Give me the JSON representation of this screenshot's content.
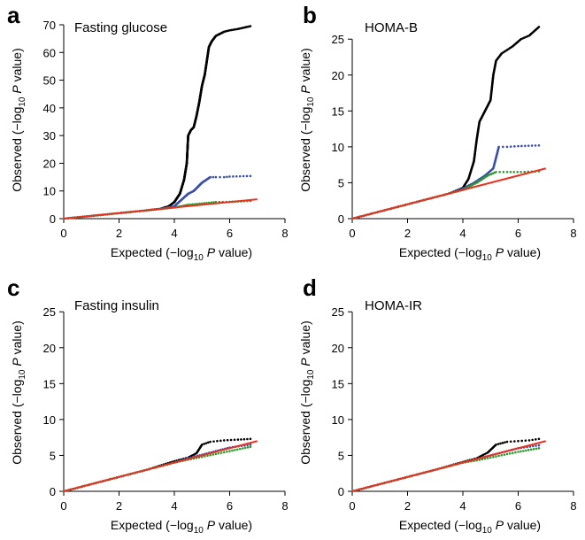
{
  "colors": {
    "all_snps": "#000000",
    "excluding_known_1": "#3b4fa8",
    "excluding_known_2": "#2e9a2e",
    "null_line": "#e8321f"
  },
  "chart_data": [
    {
      "panel": "a",
      "title": "Fasting glucose",
      "type": "scatter",
      "xlabel": {
        "pre": "Expected (−log",
        "sub": "10",
        "italic": " P",
        "post": " value)"
      },
      "ylabel": {
        "pre": "Observed (−log",
        "sub": "10",
        "italic": " P",
        "post": " value)"
      },
      "xlim": [
        0,
        8
      ],
      "ylim": [
        0,
        70
      ],
      "xticks": [
        0,
        2,
        4,
        6,
        8
      ],
      "yticks": [
        0,
        10,
        20,
        30,
        40,
        50,
        60,
        70
      ],
      "null_line": [
        [
          0,
          0
        ],
        [
          7,
          7
        ]
      ],
      "series": [
        {
          "color_key": "all_snps",
          "points": [
            [
              0,
              0
            ],
            [
              1,
              1
            ],
            [
              2,
              2
            ],
            [
              3,
              3
            ],
            [
              3.5,
              3.6
            ],
            [
              3.8,
              4.5
            ],
            [
              4.0,
              6
            ],
            [
              4.2,
              9
            ],
            [
              4.35,
              14
            ],
            [
              4.45,
              20
            ],
            [
              4.5,
              30
            ],
            [
              4.6,
              32
            ],
            [
              4.7,
              33
            ],
            [
              4.8,
              37
            ],
            [
              4.9,
              42
            ],
            [
              5.0,
              48
            ],
            [
              5.1,
              52
            ],
            [
              5.25,
              62
            ],
            [
              5.35,
              64
            ],
            [
              5.5,
              66
            ],
            [
              5.8,
              67.5
            ],
            [
              6.0,
              68
            ],
            [
              6.3,
              68.5
            ],
            [
              6.75,
              69.5
            ]
          ]
        },
        {
          "color_key": "excluding_known_1",
          "points": [
            [
              0,
              0
            ],
            [
              1,
              1
            ],
            [
              2,
              2
            ],
            [
              3,
              3
            ],
            [
              3.5,
              3.5
            ],
            [
              4,
              4.5
            ],
            [
              4.5,
              9
            ],
            [
              4.7,
              10
            ],
            [
              5.0,
              13
            ],
            [
              5.3,
              15
            ],
            [
              5.5,
              15
            ],
            [
              5.8,
              15
            ],
            [
              6,
              15.2
            ],
            [
              6.75,
              15.4
            ]
          ]
        },
        {
          "color_key": "excluding_known_2",
          "points": [
            [
              0,
              0
            ],
            [
              1,
              1
            ],
            [
              2,
              2
            ],
            [
              3,
              3
            ],
            [
              3.5,
              3.5
            ],
            [
              4,
              4
            ],
            [
              4.5,
              5
            ],
            [
              5,
              5.5
            ],
            [
              5.5,
              6
            ],
            [
              6,
              6.1
            ],
            [
              6.3,
              6.2
            ],
            [
              6.75,
              6.4
            ]
          ]
        }
      ]
    },
    {
      "panel": "b",
      "title": "HOMA-B",
      "type": "scatter",
      "xlabel": {
        "pre": "Expected (−log",
        "sub": "10",
        "italic": " P",
        "post": " value)"
      },
      "ylabel": {
        "pre": "Observed (−log",
        "sub": "10",
        "italic": " P",
        "post": " value)"
      },
      "xlim": [
        0,
        8
      ],
      "ylim": [
        0,
        27
      ],
      "xticks": [
        0,
        2,
        4,
        6,
        8
      ],
      "yticks": [
        0,
        5,
        10,
        15,
        20,
        25
      ],
      "null_line": [
        [
          0,
          0
        ],
        [
          7,
          7
        ]
      ],
      "series": [
        {
          "color_key": "all_snps",
          "points": [
            [
              0,
              0
            ],
            [
              1,
              1
            ],
            [
              2,
              2
            ],
            [
              3,
              3
            ],
            [
              3.5,
              3.5
            ],
            [
              4,
              4.3
            ],
            [
              4.2,
              5.5
            ],
            [
              4.4,
              8
            ],
            [
              4.5,
              11
            ],
            [
              4.6,
              13.5
            ],
            [
              4.8,
              15
            ],
            [
              5.0,
              16.5
            ],
            [
              5.1,
              20
            ],
            [
              5.2,
              22
            ],
            [
              5.4,
              23
            ],
            [
              5.6,
              23.5
            ],
            [
              5.8,
              24
            ],
            [
              6.1,
              25
            ],
            [
              6.4,
              25.5
            ],
            [
              6.75,
              26.7
            ]
          ]
        },
        {
          "color_key": "excluding_known_1",
          "points": [
            [
              0,
              0
            ],
            [
              1,
              1
            ],
            [
              2,
              2
            ],
            [
              3,
              3
            ],
            [
              3.5,
              3.5
            ],
            [
              4,
              4.2
            ],
            [
              4.4,
              5
            ],
            [
              4.8,
              6
            ],
            [
              5.1,
              7
            ],
            [
              5.3,
              10
            ],
            [
              5.6,
              10
            ],
            [
              6,
              10.1
            ],
            [
              6.75,
              10.2
            ]
          ]
        },
        {
          "color_key": "excluding_known_2",
          "points": [
            [
              0,
              0
            ],
            [
              1,
              1
            ],
            [
              2,
              2
            ],
            [
              3,
              3
            ],
            [
              3.5,
              3.5
            ],
            [
              4,
              4
            ],
            [
              4.5,
              5
            ],
            [
              4.9,
              6
            ],
            [
              5.2,
              6.5
            ],
            [
              5.6,
              6.5
            ],
            [
              6.1,
              6.5
            ],
            [
              6.75,
              6.6
            ]
          ]
        }
      ]
    },
    {
      "panel": "c",
      "title": "Fasting insulin",
      "type": "scatter",
      "xlabel": {
        "pre": "Expected (−log",
        "sub": "10",
        "italic": " P",
        "post": " value)"
      },
      "ylabel": {
        "pre": "Observed (−log",
        "sub": "10",
        "italic": " P",
        "post": " value)"
      },
      "xlim": [
        0,
        8
      ],
      "ylim": [
        0,
        27
      ],
      "xticks": [
        0,
        2,
        4,
        6,
        8
      ],
      "yticks": [
        0,
        5,
        10,
        15,
        20,
        25
      ],
      "null_line": [
        [
          0,
          0
        ],
        [
          7,
          7
        ]
      ],
      "series": [
        {
          "color_key": "all_snps",
          "points": [
            [
              0,
              0
            ],
            [
              1,
              1
            ],
            [
              2,
              2
            ],
            [
              3,
              3
            ],
            [
              4,
              4.2
            ],
            [
              4.5,
              4.7
            ],
            [
              4.8,
              5.3
            ],
            [
              5.0,
              6.5
            ],
            [
              5.3,
              6.9
            ],
            [
              5.8,
              7.1
            ],
            [
              6.3,
              7.2
            ],
            [
              6.75,
              7.3
            ]
          ]
        },
        {
          "color_key": "excluding_known_1",
          "points": [
            [
              0,
              0
            ],
            [
              1,
              1
            ],
            [
              2,
              2
            ],
            [
              3,
              3
            ],
            [
              4,
              4
            ],
            [
              4.5,
              4.6
            ],
            [
              5,
              5.1
            ],
            [
              5.5,
              5.6
            ],
            [
              6,
              6.1
            ],
            [
              6.75,
              6.5
            ]
          ]
        },
        {
          "color_key": "excluding_known_2",
          "points": [
            [
              0,
              0
            ],
            [
              1,
              1
            ],
            [
              2,
              2
            ],
            [
              3,
              3
            ],
            [
              4,
              4
            ],
            [
              4.5,
              4.4
            ],
            [
              5,
              4.8
            ],
            [
              5.5,
              5.2
            ],
            [
              6,
              5.6
            ],
            [
              6.75,
              6.2
            ]
          ]
        }
      ]
    },
    {
      "panel": "d",
      "title": "HOMA-IR",
      "type": "scatter",
      "xlabel": {
        "pre": "Expected (−log",
        "sub": "10",
        "italic": " P",
        "post": " value)"
      },
      "ylabel": {
        "pre": "Observed (−log",
        "sub": "10",
        "italic": " P",
        "post": " value)"
      },
      "xlim": [
        0,
        8
      ],
      "ylim": [
        0,
        27
      ],
      "xticks": [
        0,
        2,
        4,
        6,
        8
      ],
      "yticks": [
        0,
        5,
        10,
        15,
        20,
        25
      ],
      "null_line": [
        [
          0,
          0
        ],
        [
          7,
          7
        ]
      ],
      "series": [
        {
          "color_key": "all_snps",
          "points": [
            [
              0,
              0
            ],
            [
              1,
              1
            ],
            [
              2,
              2
            ],
            [
              3,
              3
            ],
            [
              4,
              4.1
            ],
            [
              4.5,
              4.6
            ],
            [
              4.9,
              5.4
            ],
            [
              5.2,
              6.5
            ],
            [
              5.6,
              6.9
            ],
            [
              6.0,
              7.0
            ],
            [
              6.4,
              7.1
            ],
            [
              6.75,
              7.3
            ]
          ]
        },
        {
          "color_key": "excluding_known_1",
          "points": [
            [
              0,
              0
            ],
            [
              1,
              1
            ],
            [
              2,
              2
            ],
            [
              3,
              3
            ],
            [
              4,
              4
            ],
            [
              4.5,
              4.5
            ],
            [
              5,
              5
            ],
            [
              5.5,
              5.5
            ],
            [
              6,
              6
            ],
            [
              6.75,
              6.4
            ]
          ]
        },
        {
          "color_key": "excluding_known_2",
          "points": [
            [
              0,
              0
            ],
            [
              1,
              1
            ],
            [
              2,
              2
            ],
            [
              3,
              3
            ],
            [
              4,
              4
            ],
            [
              4.5,
              4.3
            ],
            [
              5,
              4.7
            ],
            [
              5.5,
              5.1
            ],
            [
              6,
              5.5
            ],
            [
              6.75,
              6.0
            ]
          ]
        }
      ]
    }
  ]
}
